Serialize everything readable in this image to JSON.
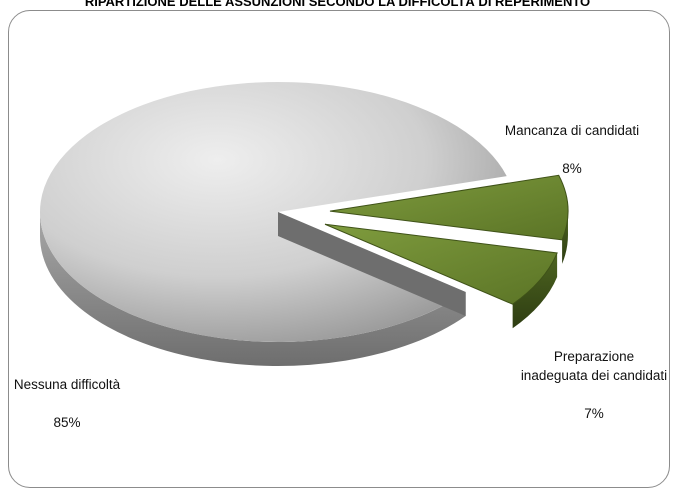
{
  "chart_data": {
    "type": "pie",
    "title": "RIPARTIZIONE DELLE ASSUNZIONI SECONDO LA DIFFICOLTÀ DI REPERIMENTO",
    "slices": [
      {
        "label": "Nessuna difficoltà",
        "value": 85,
        "percent_label": "85%",
        "color": "#c8c8c8"
      },
      {
        "label": "Mancanza di candidati",
        "value": 8,
        "percent_label": "8%",
        "color": "#6f8c34"
      },
      {
        "label": "Preparazione inadeguata dei candidati",
        "value": 7,
        "percent_label": "7%",
        "color": "#6f8c34"
      }
    ],
    "legend": "none",
    "style": "3d-exploded"
  }
}
